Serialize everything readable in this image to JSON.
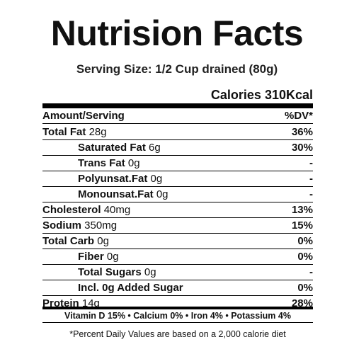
{
  "header": {
    "title": "Nutrision Facts",
    "serving": "Serving Size: 1/2 Cup drained (80g)",
    "calories": "Calories 310Kcal"
  },
  "table": {
    "head": [
      "Amount/Serving",
      "%DV*"
    ],
    "rows": [
      {
        "name": "Total Fat",
        "amount": "28g",
        "dv": "36%"
      },
      {
        "name": "Saturated Fat",
        "amount": "6g",
        "dv": "30%"
      },
      {
        "name": "Trans Fat",
        "amount": "0g",
        "dv": "-"
      },
      {
        "name": "Polyunsat.Fat",
        "amount": "0g",
        "dv": "-"
      },
      {
        "name": "Monounsat.Fat",
        "amount": "0g",
        "dv": "-"
      },
      {
        "name": "Cholesterol",
        "amount": "40mg",
        "dv": "13%"
      },
      {
        "name": "Sodium",
        "amount": "350mg",
        "dv": "15%"
      },
      {
        "name": "Total Carb",
        "amount": "0g",
        "dv": "0%"
      },
      {
        "name": "Fiber",
        "amount": "0g",
        "dv": "0%"
      },
      {
        "name": "Total Sugars",
        "amount": "0g",
        "dv": "-"
      },
      {
        "name": "Incl. 0g Added Sugar",
        "dv": "0%"
      },
      {
        "name": "Protein",
        "amount": "14g",
        "dv": "28%"
      }
    ]
  },
  "vitamins": "Vitamin D 15% • Calcium 0% • Iron 4% • Potassium 4%",
  "footnote": "*Percent Daily Values are based on a 2,000 calorie diet"
}
